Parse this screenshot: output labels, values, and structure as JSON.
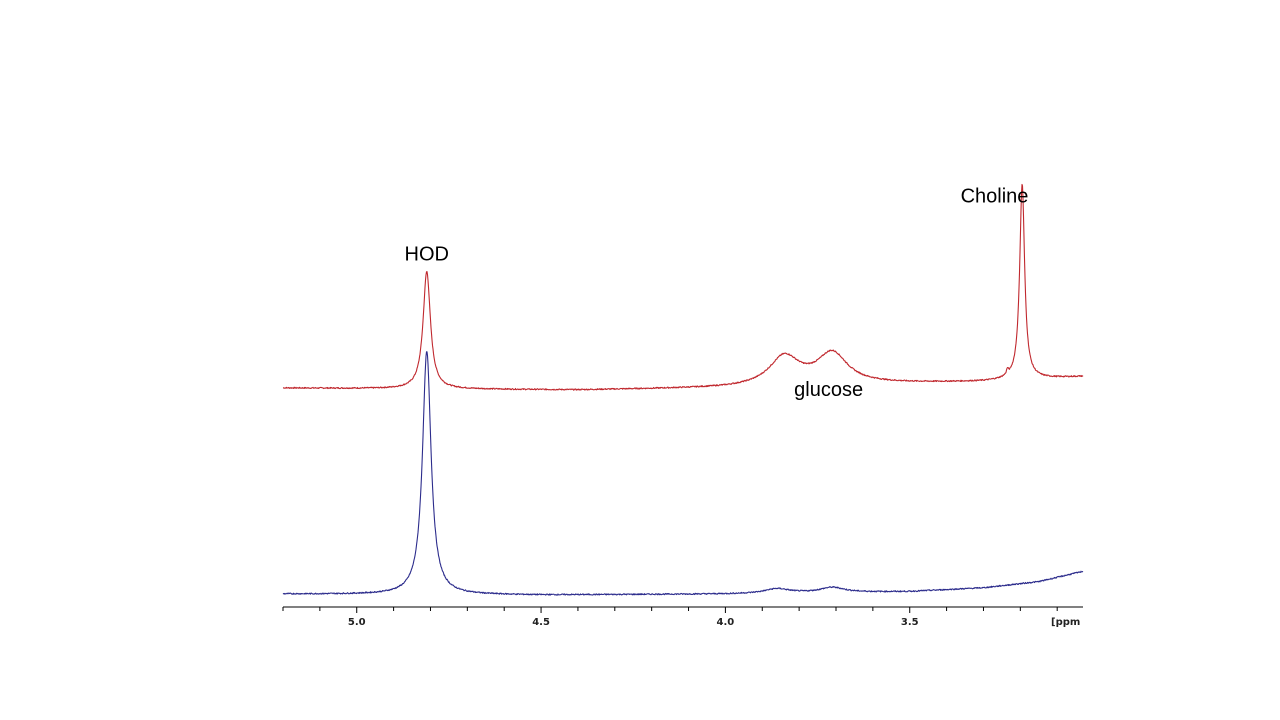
{
  "chart_data": {
    "type": "line",
    "title": "",
    "xlabel": "",
    "ylabel": "",
    "xlim": [
      5.2,
      3.03
    ],
    "x_unit_label": "[ppm",
    "x_ticks": [
      {
        "value": 5.0,
        "label": "5.0"
      },
      {
        "value": 4.5,
        "label": "4.5"
      },
      {
        "value": 4.0,
        "label": "4.0"
      },
      {
        "value": 3.5,
        "label": "3.5"
      }
    ],
    "minor_tick_step": 0.1,
    "grid": false,
    "legend": "none",
    "series": [
      {
        "color": "#c0282e",
        "offset": 1.0,
        "baseline": [
          [
            5.2,
            0.0
          ],
          [
            4.4,
            -0.01
          ],
          [
            4.0,
            0.0
          ],
          [
            3.6,
            0.02
          ],
          [
            3.3,
            0.03
          ],
          [
            3.03,
            0.055
          ]
        ],
        "peaks": [
          {
            "x": 4.81,
            "height": 0.57,
            "width": 0.012
          },
          {
            "x": 3.84,
            "height": 0.14,
            "width": 0.05
          },
          {
            "x": 3.71,
            "height": 0.15,
            "width": 0.05
          },
          {
            "x": 3.235,
            "height": 0.025,
            "width": 0.003
          },
          {
            "x": 3.195,
            "height": 0.95,
            "width": 0.008
          }
        ]
      },
      {
        "color": "#2c2c8c",
        "offset": 0.0,
        "baseline": [
          [
            5.2,
            0.0
          ],
          [
            4.5,
            -0.005
          ],
          [
            4.0,
            0.0
          ],
          [
            3.5,
            0.012
          ],
          [
            3.3,
            0.03
          ],
          [
            3.15,
            0.06
          ],
          [
            3.03,
            0.11
          ]
        ],
        "peaks": [
          {
            "x": 4.81,
            "height": 1.18,
            "width": 0.014
          },
          {
            "x": 3.86,
            "height": 0.022,
            "width": 0.04
          },
          {
            "x": 3.71,
            "height": 0.025,
            "width": 0.04
          }
        ]
      }
    ],
    "annotations": [
      {
        "text": "HOD",
        "x": 4.81,
        "y": 1.62
      },
      {
        "text": "Choline",
        "x": 3.27,
        "y": 1.9
      },
      {
        "text": "glucose",
        "x": 3.72,
        "y": 0.96
      }
    ]
  }
}
